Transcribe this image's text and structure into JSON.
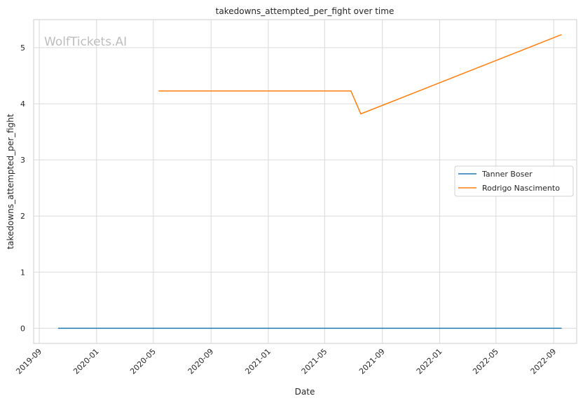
{
  "chart_data": {
    "type": "line",
    "title": "takedowns_attempted_per_fight over time",
    "xlabel": "Date",
    "ylabel": "takedowns_attempted_per_fight",
    "watermark": "WolfTickets.AI",
    "x_ticks": [
      "2019-09",
      "2020-01",
      "2020-05",
      "2020-09",
      "2021-01",
      "2021-05",
      "2021-09",
      "2022-01",
      "2022-05",
      "2022-09"
    ],
    "y_ticks": [
      0,
      1,
      2,
      3,
      4,
      5
    ],
    "xlim": [
      "2019-08-20",
      "2022-10-20"
    ],
    "ylim": [
      -0.27,
      5.5
    ],
    "grid": true,
    "legend_position": "center-right",
    "series": [
      {
        "name": "Tanner Boser",
        "color": "#1f77b4",
        "points": [
          {
            "x": "2019-10-12",
            "y": 0
          },
          {
            "x": "2022-09-17",
            "y": 0
          }
        ]
      },
      {
        "name": "Rodrigo Nascimento",
        "color": "#ff7f0e",
        "points": [
          {
            "x": "2020-05-13",
            "y": 4.23
          },
          {
            "x": "2021-06-26",
            "y": 4.23
          },
          {
            "x": "2021-07-17",
            "y": 3.82
          },
          {
            "x": "2022-09-17",
            "y": 5.23
          }
        ]
      }
    ]
  }
}
